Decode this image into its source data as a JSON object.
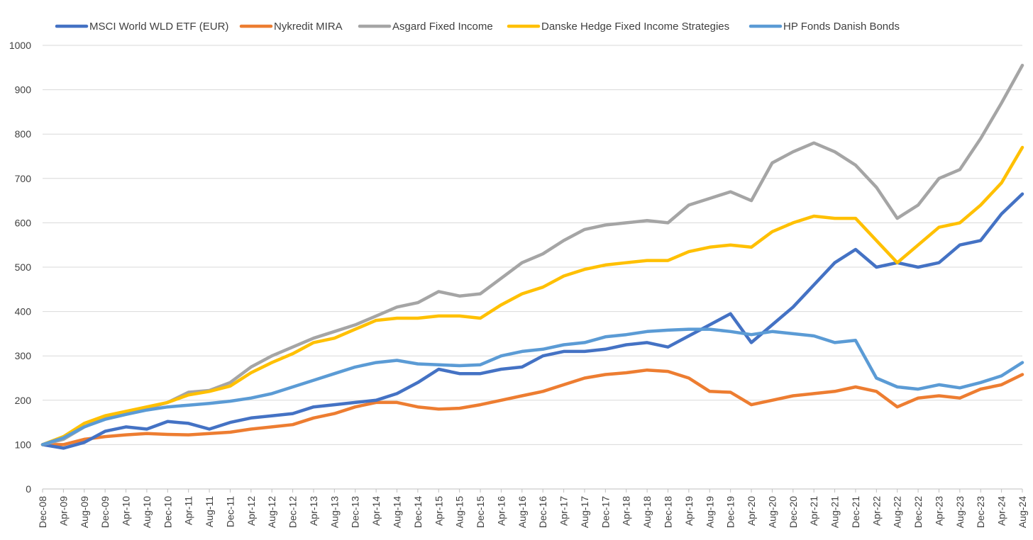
{
  "chart_data": {
    "type": "line",
    "title": "",
    "xlabel": "",
    "ylabel": "",
    "ylim": [
      0,
      1000
    ],
    "yticks": [
      0,
      100,
      200,
      300,
      400,
      500,
      600,
      700,
      800,
      900,
      1000
    ],
    "grid": "horizontal",
    "legend_position": "top",
    "x_tick_labels": [
      "Dec-08",
      "Apr-09",
      "Aug-09",
      "Dec-09",
      "Apr-10",
      "Aug-10",
      "Dec-10",
      "Apr-11",
      "Aug-11",
      "Dec-11",
      "Apr-12",
      "Aug-12",
      "Dec-12",
      "Apr-13",
      "Aug-13",
      "Dec-13",
      "Apr-14",
      "Aug-14",
      "Dec-14",
      "Apr-15",
      "Aug-15",
      "Dec-15",
      "Apr-16",
      "Aug-16",
      "Dec-16",
      "Apr-17",
      "Aug-17",
      "Dec-17",
      "Apr-18",
      "Aug-18",
      "Dec-18",
      "Apr-19",
      "Aug-19",
      "Dec-19",
      "Apr-20",
      "Aug-20",
      "Dec-20",
      "Apr-21",
      "Aug-21",
      "Dec-21",
      "Apr-22",
      "Aug-22",
      "Dec-22",
      "Apr-23",
      "Aug-23",
      "Dec-23",
      "Apr-24",
      "Aug-24"
    ],
    "series": [
      {
        "name": "MSCI World WLD ETF (EUR)",
        "color": "#4472C4",
        "values": [
          100,
          92,
          105,
          130,
          140,
          135,
          152,
          148,
          135,
          150,
          160,
          165,
          170,
          185,
          190,
          195,
          200,
          215,
          240,
          270,
          260,
          260,
          270,
          275,
          300,
          310,
          310,
          315,
          325,
          330,
          320,
          345,
          370,
          395,
          330,
          370,
          410,
          460,
          510,
          540,
          500,
          510,
          500,
          510,
          550,
          560,
          620,
          665
        ]
      },
      {
        "name": "Nykredit MIRA",
        "color": "#ED7D31",
        "values": [
          100,
          100,
          112,
          118,
          122,
          125,
          123,
          122,
          125,
          128,
          135,
          140,
          145,
          160,
          170,
          185,
          195,
          195,
          185,
          180,
          182,
          190,
          200,
          210,
          220,
          235,
          250,
          258,
          262,
          268,
          265,
          250,
          220,
          218,
          190,
          200,
          210,
          215,
          220,
          230,
          220,
          185,
          205,
          210,
          205,
          225,
          235,
          258
        ]
      },
      {
        "name": "Asgard Fixed Income",
        "color": "#A5A5A5",
        "values": [
          100,
          112,
          140,
          160,
          172,
          182,
          195,
          218,
          222,
          240,
          275,
          300,
          320,
          340,
          355,
          370,
          390,
          410,
          420,
          445,
          435,
          440,
          475,
          510,
          530,
          560,
          585,
          595,
          600,
          605,
          600,
          640,
          655,
          670,
          650,
          735,
          760,
          780,
          760,
          730,
          680,
          610,
          640,
          700,
          720,
          790,
          870,
          955
        ]
      },
      {
        "name": "Danske Hedge Fixed Income Strategies",
        "color": "#FFC000",
        "values": [
          100,
          118,
          148,
          165,
          175,
          185,
          195,
          212,
          220,
          232,
          262,
          285,
          305,
          330,
          340,
          360,
          380,
          385,
          385,
          390,
          390,
          385,
          415,
          440,
          455,
          480,
          495,
          505,
          510,
          515,
          515,
          535,
          545,
          550,
          545,
          580,
          600,
          615,
          610,
          610,
          560,
          510,
          550,
          590,
          600,
          640,
          690,
          770
        ]
      },
      {
        "name": "HP Fonds Danish Bonds",
        "color": "#5B9BD5",
        "values": [
          100,
          115,
          140,
          157,
          168,
          178,
          185,
          189,
          193,
          198,
          205,
          215,
          230,
          245,
          260,
          275,
          285,
          290,
          282,
          280,
          278,
          280,
          300,
          310,
          315,
          325,
          330,
          343,
          348,
          355,
          358,
          360,
          360,
          355,
          348,
          355,
          350,
          345,
          330,
          335,
          250,
          230,
          225,
          235,
          228,
          240,
          255,
          285
        ]
      }
    ]
  }
}
